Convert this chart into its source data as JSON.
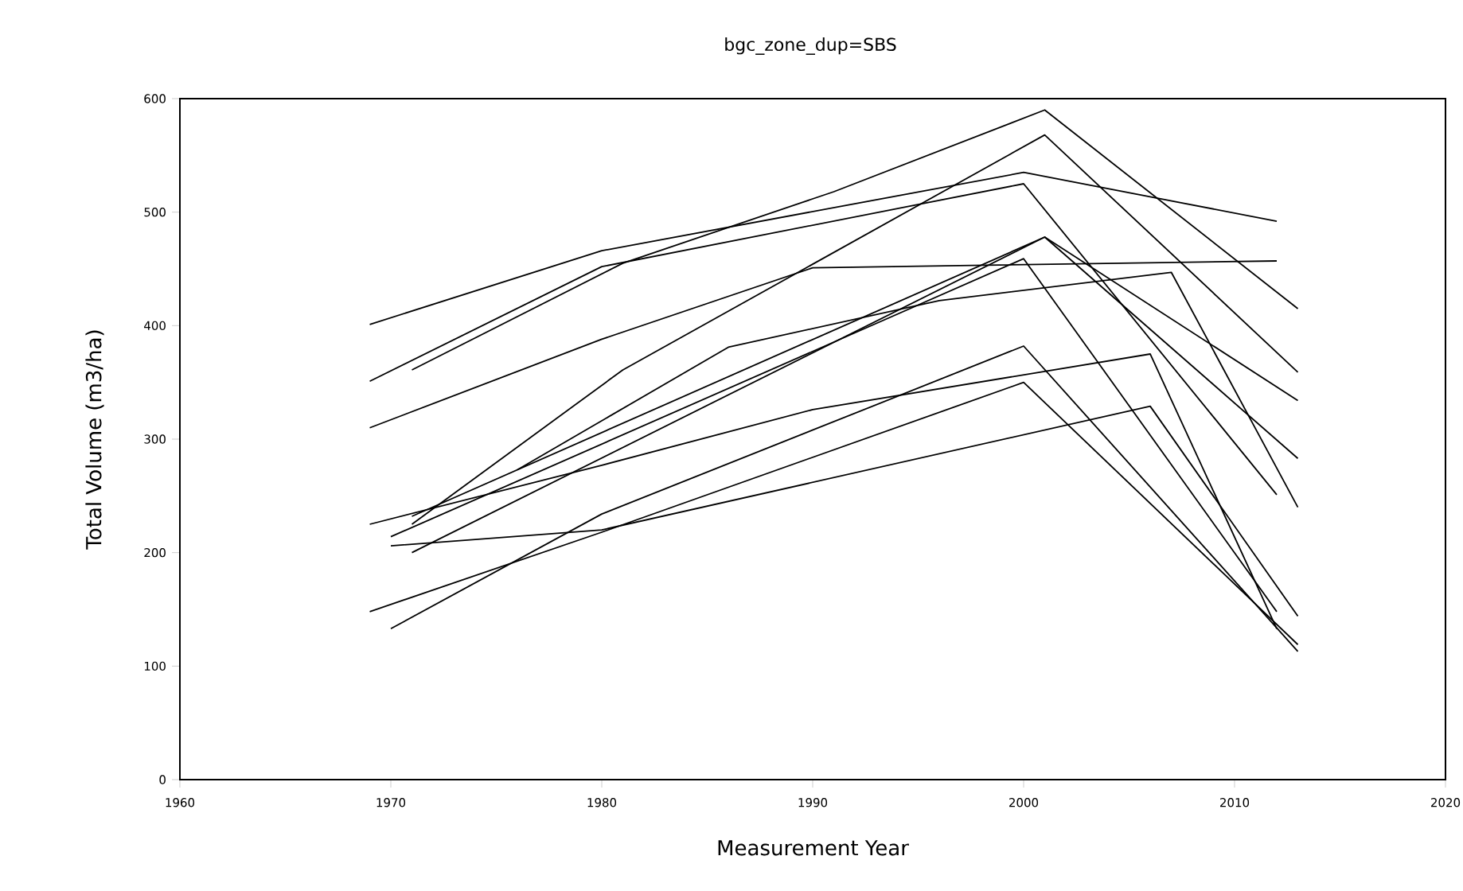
{
  "chart_data": {
    "type": "line",
    "title": "bgc_zone_dup=SBS",
    "xlabel": "Measurement Year",
    "ylabel": "Total Volume (m3/ha)",
    "xlim": [
      1960,
      2020
    ],
    "xticks": [
      1960,
      1970,
      1980,
      1990,
      2000,
      2010,
      2020
    ],
    "ylim": [
      0,
      600
    ],
    "yticks": [
      0,
      100,
      200,
      300,
      400,
      500,
      600
    ],
    "marker": "none",
    "series": [
      {
        "color": "#000000",
        "x": [
          1969,
          1980,
          2000,
          2012
        ],
        "values": [
          401,
          466,
          535,
          492
        ]
      },
      {
        "color": "#000000",
        "x": [
          1969,
          1980,
          2000,
          2012
        ],
        "values": [
          351,
          452,
          525,
          251
        ]
      },
      {
        "color": "#000000",
        "x": [
          1971,
          1981,
          1991,
          2001,
          2013
        ],
        "values": [
          361,
          455,
          518,
          590,
          415
        ]
      },
      {
        "color": "#000000",
        "x": [
          1969,
          1980,
          1990,
          2012
        ],
        "values": [
          310,
          388,
          451,
          457
        ]
      },
      {
        "color": "#000000",
        "x": [
          1971,
          1981,
          2001,
          2013
        ],
        "values": [
          225,
          361,
          568,
          359
        ]
      },
      {
        "color": "#000000",
        "x": [
          1969,
          1980,
          1990,
          2006,
          2012
        ],
        "values": [
          225,
          277,
          326,
          375,
          133
        ]
      },
      {
        "color": "#000000",
        "x": [
          1970,
          1980,
          2006,
          2013
        ],
        "values": [
          206,
          220,
          329,
          144
        ]
      },
      {
        "color": "#000000",
        "x": [
          1969,
          1980,
          2000,
          2013
        ],
        "values": [
          148,
          218,
          350,
          119
        ]
      },
      {
        "color": "#000000",
        "x": [
          1970,
          1980,
          2000,
          2013
        ],
        "values": [
          133,
          234,
          382,
          113
        ]
      },
      {
        "color": "#000000",
        "x": [
          1971,
          2001,
          2013
        ],
        "values": [
          232,
          478,
          334
        ]
      },
      {
        "color": "#000000",
        "x": [
          1971,
          2001,
          2013
        ],
        "values": [
          200,
          478,
          283
        ]
      },
      {
        "color": "#000000",
        "x": [
          1970,
          2000,
          2012
        ],
        "values": [
          214,
          459,
          148
        ]
      },
      {
        "color": "#000000",
        "x": [
          1976,
          1986,
          1996,
          2007,
          2013
        ],
        "values": [
          273,
          381,
          422,
          447,
          240
        ]
      }
    ]
  }
}
